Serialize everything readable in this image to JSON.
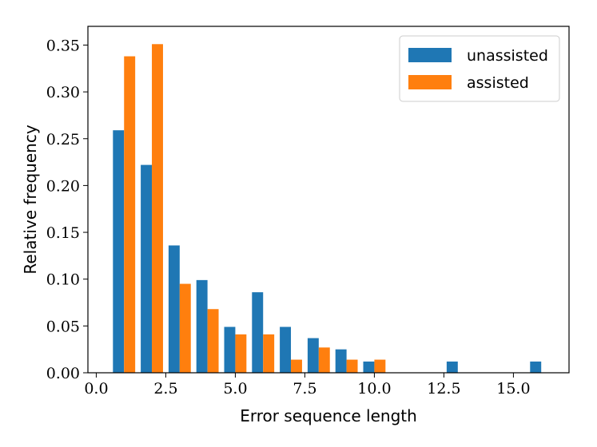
{
  "chart_data": {
    "type": "bar",
    "title": "",
    "xlabel": "Error sequence length",
    "ylabel": "Relative frequency",
    "xlim": [
      -0.3,
      17.0
    ],
    "ylim": [
      0.0,
      0.37
    ],
    "x_ticks": [
      {
        "value": 0.0,
        "label": "0.0"
      },
      {
        "value": 2.5,
        "label": "2.5"
      },
      {
        "value": 5.0,
        "label": "5.0"
      },
      {
        "value": 7.5,
        "label": "7.5"
      },
      {
        "value": 10.0,
        "label": "10.0"
      },
      {
        "value": 12.5,
        "label": "12.5"
      },
      {
        "value": 15.0,
        "label": "15.0"
      }
    ],
    "y_ticks": [
      {
        "value": 0.0,
        "label": "0.00"
      },
      {
        "value": 0.05,
        "label": "0.05"
      },
      {
        "value": 0.1,
        "label": "0.10"
      },
      {
        "value": 0.15,
        "label": "0.15"
      },
      {
        "value": 0.2,
        "label": "0.20"
      },
      {
        "value": 0.25,
        "label": "0.25"
      },
      {
        "value": 0.3,
        "label": "0.30"
      },
      {
        "value": 0.35,
        "label": "0.35"
      }
    ],
    "bin_width": 0.8,
    "legend_position": "top-right",
    "series": [
      {
        "name": "unassisted",
        "color": "#1f77b4",
        "bars": [
          {
            "x": 0.6,
            "value": 0.259
          },
          {
            "x": 1.6,
            "value": 0.222
          },
          {
            "x": 2.6,
            "value": 0.136
          },
          {
            "x": 3.6,
            "value": 0.099
          },
          {
            "x": 4.6,
            "value": 0.049
          },
          {
            "x": 5.6,
            "value": 0.086
          },
          {
            "x": 6.6,
            "value": 0.049
          },
          {
            "x": 7.6,
            "value": 0.037
          },
          {
            "x": 8.6,
            "value": 0.025
          },
          {
            "x": 9.6,
            "value": 0.012
          },
          {
            "x": 12.6,
            "value": 0.012
          },
          {
            "x": 15.6,
            "value": 0.012
          }
        ]
      },
      {
        "name": "assisted",
        "color": "#ff7f0e",
        "bars": [
          {
            "x": 1.0,
            "value": 0.338
          },
          {
            "x": 2.0,
            "value": 0.351
          },
          {
            "x": 3.0,
            "value": 0.095
          },
          {
            "x": 4.0,
            "value": 0.068
          },
          {
            "x": 5.0,
            "value": 0.041
          },
          {
            "x": 6.0,
            "value": 0.041
          },
          {
            "x": 7.0,
            "value": 0.014
          },
          {
            "x": 8.0,
            "value": 0.027
          },
          {
            "x": 9.0,
            "value": 0.014
          },
          {
            "x": 10.0,
            "value": 0.014
          }
        ]
      }
    ]
  }
}
